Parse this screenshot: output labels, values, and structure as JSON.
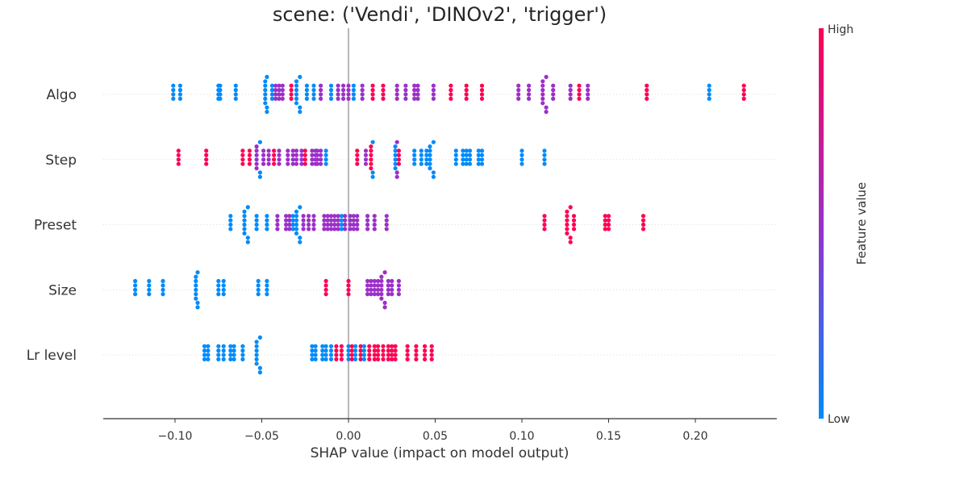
{
  "chart_data": {
    "type": "scatter",
    "title": "scene: ('Vendi', 'DINOv2', 'trigger')",
    "xlabel": "SHAP value (impact on model output)",
    "xlim": [
      -0.14,
      0.245
    ],
    "x_ticks": [
      -0.1,
      -0.05,
      0.0,
      0.05,
      0.1,
      0.15,
      0.2
    ],
    "x_tick_labels": [
      "−0.10",
      "−0.05",
      "0.00",
      "0.05",
      "0.10",
      "0.15",
      "0.20"
    ],
    "categories": [
      "Algo",
      "Step",
      "Preset",
      "Size",
      "Lr level"
    ],
    "colorbar": {
      "title": "Feature value",
      "high_label": "High",
      "low_label": "Low",
      "low_color": "#008bfb",
      "mid_color": "#9b30c8",
      "high_color": "#ff0052"
    },
    "series": [
      {
        "feature": "Algo",
        "points": [
          [
            -0.101,
            0.0
          ],
          [
            -0.097,
            0.0
          ],
          [
            -0.074,
            0.0
          ],
          [
            -0.075,
            0.0
          ],
          [
            -0.065,
            0.0
          ],
          [
            -0.048,
            0.0
          ],
          [
            -0.047,
            0.0
          ],
          [
            -0.044,
            0.0
          ],
          [
            -0.042,
            0.5
          ],
          [
            -0.04,
            0.5
          ],
          [
            -0.038,
            0.5
          ],
          [
            -0.033,
            1.0
          ],
          [
            -0.03,
            0.0
          ],
          [
            -0.028,
            0.0
          ],
          [
            -0.024,
            0.0
          ],
          [
            -0.02,
            0.0
          ],
          [
            -0.016,
            0.5
          ],
          [
            -0.01,
            0.0
          ],
          [
            -0.006,
            0.5
          ],
          [
            -0.003,
            0.5
          ],
          [
            0.0,
            0.5
          ],
          [
            0.003,
            0.0
          ],
          [
            0.008,
            0.5
          ],
          [
            0.014,
            1.0
          ],
          [
            0.02,
            1.0
          ],
          [
            0.028,
            0.5
          ],
          [
            0.033,
            0.5
          ],
          [
            0.038,
            0.5
          ],
          [
            0.04,
            0.5
          ],
          [
            0.049,
            0.5
          ],
          [
            0.059,
            1.0
          ],
          [
            0.068,
            1.0
          ],
          [
            0.077,
            1.0
          ],
          [
            0.098,
            0.5
          ],
          [
            0.104,
            0.5
          ],
          [
            0.112,
            0.5
          ],
          [
            0.114,
            0.5
          ],
          [
            0.118,
            0.5
          ],
          [
            0.128,
            0.5
          ],
          [
            0.133,
            1.0
          ],
          [
            0.138,
            0.5
          ],
          [
            0.172,
            1.0
          ],
          [
            0.208,
            0.0
          ],
          [
            0.228,
            1.0
          ]
        ]
      },
      {
        "feature": "Step",
        "points": [
          [
            -0.098,
            1.0
          ],
          [
            -0.082,
            1.0
          ],
          [
            -0.061,
            1.0
          ],
          [
            -0.057,
            1.0
          ],
          [
            -0.053,
            0.5
          ],
          [
            -0.051,
            0.0
          ],
          [
            -0.049,
            0.5
          ],
          [
            -0.046,
            0.5
          ],
          [
            -0.043,
            1.0
          ],
          [
            -0.04,
            0.5
          ],
          [
            -0.035,
            0.5
          ],
          [
            -0.032,
            0.5
          ],
          [
            -0.03,
            0.5
          ],
          [
            -0.027,
            0.5
          ],
          [
            -0.025,
            1.0
          ],
          [
            -0.021,
            0.5
          ],
          [
            -0.019,
            0.5
          ],
          [
            -0.018,
            0.5
          ],
          [
            -0.016,
            0.5
          ],
          [
            -0.013,
            0.0
          ],
          [
            0.005,
            1.0
          ],
          [
            0.01,
            0.5
          ],
          [
            0.013,
            1.0
          ],
          [
            0.014,
            0.0
          ],
          [
            0.027,
            0.0
          ],
          [
            0.028,
            0.5
          ],
          [
            0.029,
            1.0
          ],
          [
            0.038,
            0.0
          ],
          [
            0.042,
            0.0
          ],
          [
            0.045,
            0.0
          ],
          [
            0.047,
            0.0
          ],
          [
            0.049,
            0.0
          ],
          [
            0.062,
            0.0
          ],
          [
            0.066,
            0.0
          ],
          [
            0.068,
            0.0
          ],
          [
            0.07,
            0.0
          ],
          [
            0.075,
            0.0
          ],
          [
            0.077,
            0.0
          ],
          [
            0.1,
            0.0
          ],
          [
            0.113,
            0.0
          ]
        ]
      },
      {
        "feature": "Preset",
        "points": [
          [
            -0.068,
            0.0
          ],
          [
            -0.06,
            0.0
          ],
          [
            -0.058,
            0.0
          ],
          [
            -0.053,
            0.0
          ],
          [
            -0.047,
            0.0
          ],
          [
            -0.041,
            0.5
          ],
          [
            -0.036,
            0.5
          ],
          [
            -0.034,
            0.5
          ],
          [
            -0.032,
            0.0
          ],
          [
            -0.03,
            0.0
          ],
          [
            -0.028,
            0.0
          ],
          [
            -0.026,
            0.5
          ],
          [
            -0.023,
            0.5
          ],
          [
            -0.02,
            0.5
          ],
          [
            -0.014,
            0.5
          ],
          [
            -0.012,
            0.5
          ],
          [
            -0.01,
            0.5
          ],
          [
            -0.008,
            0.5
          ],
          [
            -0.006,
            0.5
          ],
          [
            -0.004,
            0.0
          ],
          [
            -0.002,
            0.5
          ],
          [
            0.001,
            0.5
          ],
          [
            0.003,
            0.5
          ],
          [
            0.005,
            0.5
          ],
          [
            0.011,
            0.5
          ],
          [
            0.015,
            0.5
          ],
          [
            0.022,
            0.5
          ],
          [
            0.113,
            1.0
          ],
          [
            0.126,
            1.0
          ],
          [
            0.128,
            1.0
          ],
          [
            0.13,
            1.0
          ],
          [
            0.148,
            1.0
          ],
          [
            0.15,
            1.0
          ],
          [
            0.17,
            1.0
          ]
        ]
      },
      {
        "feature": "Size",
        "points": [
          [
            -0.123,
            0.0
          ],
          [
            -0.115,
            0.0
          ],
          [
            -0.107,
            0.0
          ],
          [
            -0.088,
            0.0
          ],
          [
            -0.087,
            0.0
          ],
          [
            -0.075,
            0.0
          ],
          [
            -0.072,
            0.0
          ],
          [
            -0.052,
            0.0
          ],
          [
            -0.047,
            0.0
          ],
          [
            -0.013,
            1.0
          ],
          [
            0.0,
            1.0
          ],
          [
            0.011,
            0.5
          ],
          [
            0.013,
            0.5
          ],
          [
            0.015,
            0.5
          ],
          [
            0.017,
            0.5
          ],
          [
            0.019,
            0.5
          ],
          [
            0.021,
            0.5
          ],
          [
            0.023,
            0.5
          ],
          [
            0.025,
            0.5
          ],
          [
            0.029,
            0.5
          ]
        ]
      },
      {
        "feature": "Lr level",
        "points": [
          [
            -0.083,
            0.0
          ],
          [
            -0.081,
            0.0
          ],
          [
            -0.075,
            0.0
          ],
          [
            -0.072,
            0.0
          ],
          [
            -0.068,
            0.0
          ],
          [
            -0.066,
            0.0
          ],
          [
            -0.061,
            0.0
          ],
          [
            -0.053,
            0.0
          ],
          [
            -0.051,
            0.0
          ],
          [
            -0.021,
            0.0
          ],
          [
            -0.019,
            0.0
          ],
          [
            -0.015,
            0.0
          ],
          [
            -0.013,
            0.0
          ],
          [
            -0.01,
            0.0
          ],
          [
            -0.007,
            1.0
          ],
          [
            -0.004,
            1.0
          ],
          [
            0.0,
            0.0
          ],
          [
            0.002,
            1.0
          ],
          [
            0.004,
            0.0
          ],
          [
            0.007,
            1.0
          ],
          [
            0.009,
            0.0
          ],
          [
            0.012,
            1.0
          ],
          [
            0.015,
            1.0
          ],
          [
            0.017,
            1.0
          ],
          [
            0.02,
            1.0
          ],
          [
            0.023,
            1.0
          ],
          [
            0.025,
            1.0
          ],
          [
            0.027,
            1.0
          ],
          [
            0.034,
            1.0
          ],
          [
            0.039,
            1.0
          ],
          [
            0.044,
            1.0
          ],
          [
            0.048,
            1.0
          ]
        ]
      }
    ]
  }
}
